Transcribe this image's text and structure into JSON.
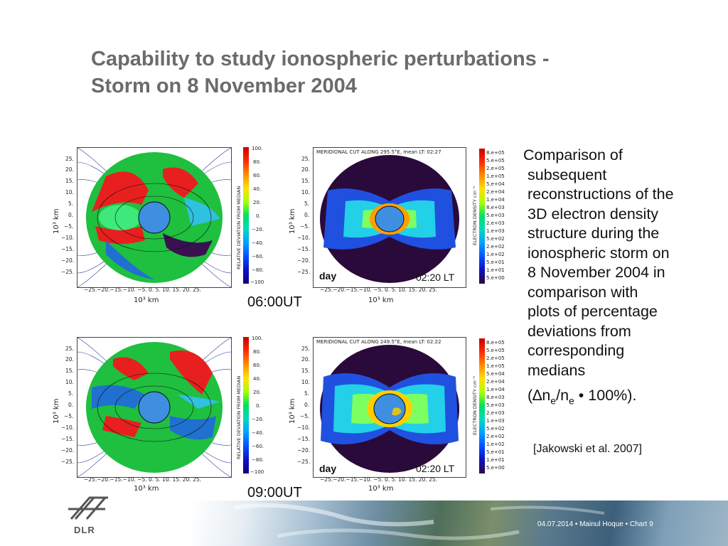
{
  "title_line1": "Capability to study ionospheric perturbations -",
  "title_line2": "Storm on 8 November 2004",
  "plots": {
    "rel_cb_title": "RELATIVE DEVIATION FROM MEDIAN",
    "rel_cb_ticks": [
      "100.",
      "80.",
      "60.",
      "40.",
      "20.",
      "0.",
      "−20.",
      "−40.",
      "−60.",
      "−80.",
      "−100"
    ],
    "dens_cb_title": "ELECTRON DENSITY cm⁻³",
    "dens_cb_ticks": [
      "8.e+05",
      "5.e+05",
      "2.e+05",
      "1.e+05",
      "5.e+04",
      "2.e+04",
      "1.e+04",
      "8.e+03",
      "5.e+03",
      "2.e+03",
      "1.e+03",
      "5.e+02",
      "2.e+02",
      "1.e+02",
      "5.e+01",
      "1.e+01",
      "5.e+00"
    ],
    "y_ticks": [
      "25.",
      "20.",
      "15.",
      "10.",
      "5.",
      "0.",
      "−5.",
      "−10.",
      "−15.",
      "−20.",
      "−25."
    ],
    "x_ticks": "−25.−20.−15.−10.  −5.    0.   5.  10.  15.  20.  25.",
    "axis_label": "10³ km",
    "top_header": "MERIDIONAL CUT ALONG 295.5°E, mean LT: 02:27",
    "bottom_header": "MERIDIONAL CUT ALONG 249.5°E, mean LT: 02:22",
    "day_label": "day",
    "lt_label": "02:20 LT",
    "ut_top": "06:00UT",
    "ut_bottom": "09:00UT"
  },
  "description": {
    "lines": [
      "Comparison of",
      "subsequent",
      "reconstructions of the",
      "3D electron density",
      "structure during the",
      "ionospheric storm on",
      "8 November 2004 in",
      "comparison with",
      "plots of percentage",
      "deviations from",
      "corresponding",
      "medians"
    ],
    "formula_open": "(",
    "formula_delta": "∆n",
    "formula_sub1": "e",
    "formula_slash": "/n",
    "formula_sub2": "e",
    "formula_rest": "  • 100%).",
    "reference": "[Jakowski et al. 2007]"
  },
  "footer": {
    "logo_text": "DLR",
    "info": "04.07.2014 • Mainul Hoque • Chart 9"
  },
  "colors": {
    "title": "#6b6b6b",
    "earth": "#3f8fe0",
    "dark_bg": "#2a0a3a"
  }
}
